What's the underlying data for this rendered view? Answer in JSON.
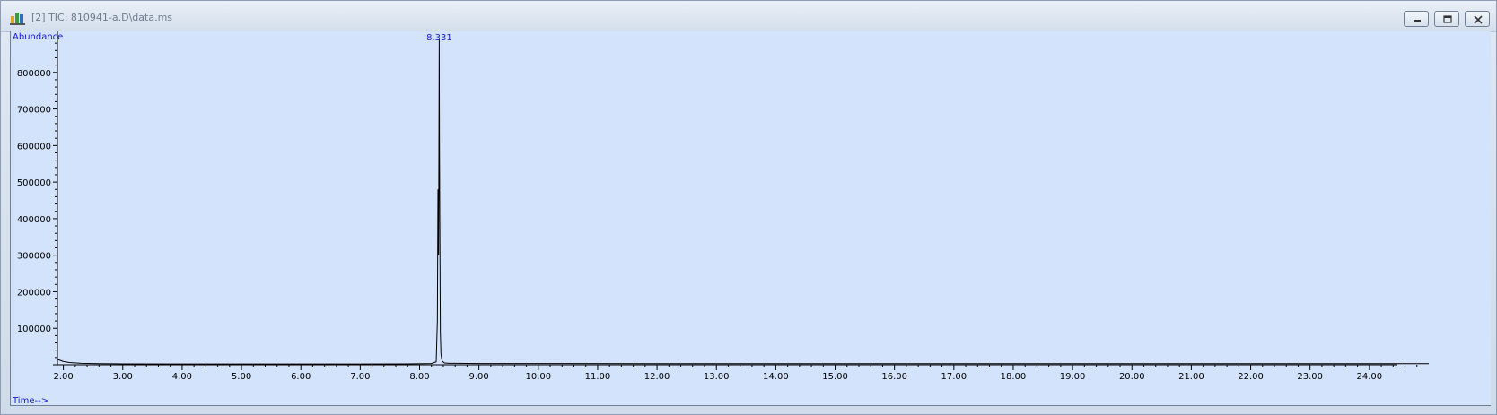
{
  "window": {
    "title": "[2] TIC: 810941-a.D\\data.ms",
    "icons": [
      "app-icon",
      "minimize-icon",
      "restore-icon",
      "close-icon"
    ]
  },
  "chart_data": {
    "type": "line",
    "ylabel": "Abundance",
    "xlabel": "Time-->",
    "xlim": [
      1.9,
      25.0
    ],
    "ylim": [
      0,
      900000
    ],
    "x_ticks": [
      "2.00",
      "3.00",
      "4.00",
      "5.00",
      "6.00",
      "7.00",
      "8.00",
      "9.00",
      "10.00",
      "11.00",
      "12.00",
      "13.00",
      "14.00",
      "15.00",
      "16.00",
      "17.00",
      "18.00",
      "19.00",
      "20.00",
      "21.00",
      "22.00",
      "23.00",
      "24.00"
    ],
    "y_ticks": [
      "100000",
      "200000",
      "300000",
      "400000",
      "500000",
      "600000",
      "700000",
      "800000"
    ],
    "peak_label": "8.331",
    "series": [
      {
        "color": "#000000",
        "x": [
          1.9,
          1.95,
          2.0,
          2.1,
          2.3,
          2.6,
          3.0,
          4.0,
          5.0,
          6.0,
          7.0,
          7.8,
          8.2,
          8.28,
          8.3,
          8.31,
          8.32,
          8.331,
          8.335,
          8.34,
          8.345,
          8.35,
          8.36,
          8.38,
          8.42,
          8.5,
          9.0,
          10.0,
          12.0,
          14.0,
          16.0,
          18.0,
          20.0,
          22.0,
          24.0,
          25.0
        ],
        "y": [
          15000,
          12000,
          9000,
          6000,
          4000,
          3000,
          2500,
          2200,
          2000,
          2000,
          2200,
          2500,
          3500,
          8000,
          120000,
          480000,
          300000,
          890000,
          600000,
          415000,
          250000,
          90000,
          30000,
          10000,
          5000,
          4000,
          3500,
          3300,
          3200,
          3200,
          3100,
          3100,
          3000,
          3000,
          3000,
          3000
        ]
      }
    ]
  }
}
